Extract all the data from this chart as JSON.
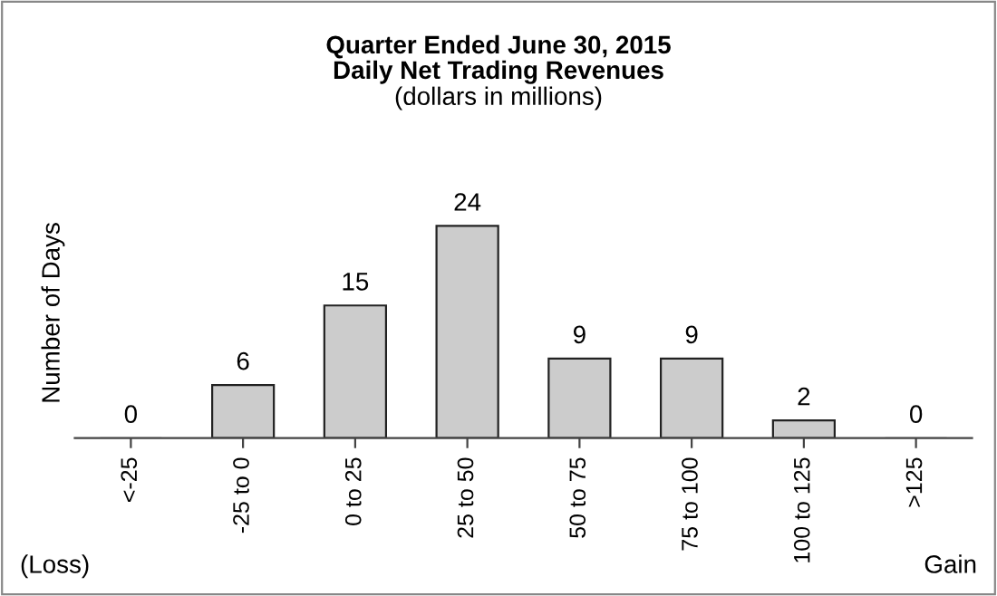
{
  "chart_data": {
    "type": "bar",
    "title": "Quarter Ended June 30, 2015\nDaily Net Trading Revenues",
    "subtitle": "(dollars in millions)",
    "ylabel": "Number of Days",
    "categories": [
      "<-25",
      "-25 to 0",
      "0 to 25",
      "25 to 50",
      "50 to 75",
      "75 to 100",
      "100 to 125",
      ">125"
    ],
    "values": [
      0,
      6,
      15,
      24,
      9,
      9,
      2,
      0
    ],
    "color": "#cccccc",
    "data_labels": true,
    "tick_labels": "x",
    "grid": false,
    "legend": false,
    "annotations": [
      "(Loss)",
      "Gain"
    ]
  }
}
